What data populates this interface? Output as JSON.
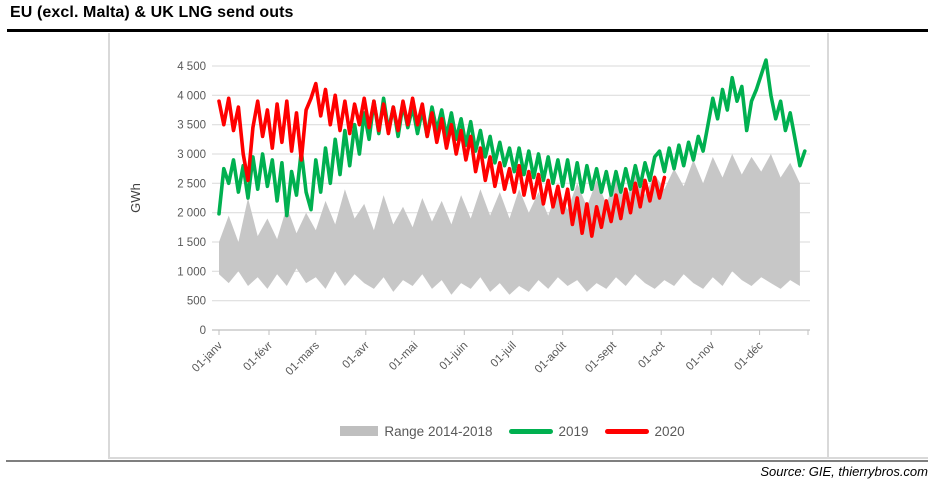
{
  "page": {
    "title": "EU (excl. Malta) & UK LNG send outs",
    "source": "Source: GIE, thierrybros.com"
  },
  "legend": {
    "items": [
      {
        "label": "Range 2014-2018",
        "color": "#BFBFBF",
        "swatch": "box"
      },
      {
        "label": "2019",
        "color": "#00B050",
        "swatch": "line"
      },
      {
        "label": "2020",
        "color": "#FF0000",
        "swatch": "line"
      }
    ]
  },
  "chart_data": {
    "type": "line",
    "title": "EU (excl. Malta) & UK LNG send outs",
    "ylabel": "GWh",
    "xlabel": "",
    "ylim": [
      0,
      4500
    ],
    "grid": true,
    "legend_position": "bottom",
    "days_in_year": 366,
    "ytick_values": [
      0,
      500,
      1000,
      1500,
      2000,
      2500,
      3000,
      3500,
      4000,
      4500
    ],
    "ytick_labels": [
      "0",
      "500",
      "1 000",
      "1 500",
      "2 000",
      "2 500",
      "3 000",
      "3 500",
      "4 000",
      "4 500"
    ],
    "xtick_days": [
      1,
      32,
      61,
      92,
      122,
      153,
      183,
      214,
      245,
      275,
      306,
      336
    ],
    "xtick_labels": [
      "01-janv",
      "01-févr",
      "01-mars",
      "01-avr",
      "01-mai",
      "01-juin",
      "01-juil",
      "01-août",
      "01-sept",
      "01-oct",
      "01-nov",
      "01-déc"
    ],
    "series": [
      {
        "name": "Range 2014-2018",
        "type": "band",
        "color": "#C7C7C7",
        "days": {
          "start": 1,
          "step": 6
        },
        "min": [
          950,
          800,
          1000,
          750,
          900,
          700,
          950,
          750,
          1050,
          800,
          900,
          700,
          1000,
          750,
          950,
          800,
          700,
          900,
          650,
          850,
          750,
          950,
          700,
          850,
          600,
          800,
          700,
          900,
          650,
          800,
          600,
          750,
          650,
          850,
          700,
          900,
          750,
          850,
          650,
          800,
          700,
          900,
          750,
          950,
          800,
          700,
          850,
          750,
          950,
          800,
          700,
          900,
          750,
          1000,
          850,
          750,
          900,
          800,
          700,
          850,
          750
        ],
        "max": [
          1500,
          1950,
          1500,
          2250,
          1600,
          1900,
          1550,
          2100,
          1650,
          2000,
          1700,
          2200,
          1800,
          2400,
          1900,
          2150,
          1700,
          2300,
          1800,
          2100,
          1750,
          2250,
          1850,
          2200,
          1800,
          2300,
          1900,
          2400,
          1950,
          2350,
          1900,
          2400,
          2000,
          2350,
          1950,
          2400,
          2050,
          2500,
          2100,
          2550,
          2150,
          2600,
          2200,
          2700,
          2300,
          2650,
          2400,
          2750,
          2450,
          2900,
          2500,
          2950,
          2600,
          3000,
          2650,
          2950,
          2700,
          3000,
          2600,
          2850,
          2500
        ]
      },
      {
        "name": "2019",
        "type": "line",
        "color": "#00B050",
        "days": {
          "start": 1,
          "step": 3
        },
        "values": [
          1980,
          2750,
          2500,
          2900,
          2350,
          2800,
          2250,
          2950,
          2400,
          3000,
          2450,
          2900,
          2200,
          2850,
          1950,
          2700,
          2300,
          3050,
          2350,
          2050,
          2900,
          2350,
          3100,
          2500,
          3250,
          2650,
          3400,
          2800,
          3500,
          3000,
          3700,
          3250,
          3900,
          3350,
          3950,
          3400,
          3800,
          3300,
          3850,
          3450,
          3800,
          3350,
          3750,
          3300,
          3800,
          3400,
          3750,
          3300,
          3700,
          3250,
          3600,
          3150,
          3550,
          3050,
          3400,
          2950,
          3300,
          2850,
          3200,
          2800,
          3100,
          2700,
          3100,
          2650,
          3050,
          2600,
          3000,
          2550,
          2950,
          2500,
          2900,
          2450,
          2900,
          2400,
          2850,
          2350,
          2800,
          2400,
          2750,
          2350,
          2700,
          2300,
          2700,
          2350,
          2750,
          2400,
          2800,
          2450,
          2850,
          2550,
          2950,
          3050,
          2700,
          3100,
          2750,
          3150,
          2800,
          3200,
          2900,
          3300,
          3050,
          3500,
          3950,
          3600,
          4100,
          3750,
          4300,
          3900,
          4150,
          3400,
          3900,
          4100,
          4350,
          4600,
          4000,
          3600,
          3900,
          3400,
          3700,
          3250,
          2800,
          3050
        ]
      },
      {
        "name": "2020",
        "type": "line",
        "color": "#FF0000",
        "days": {
          "start": 1,
          "step": 3
        },
        "values": [
          3900,
          3500,
          3950,
          3400,
          3800,
          3000,
          2550,
          3450,
          3900,
          3300,
          3750,
          3100,
          3850,
          3200,
          3900,
          3050,
          3700,
          2900,
          3750,
          3950,
          4200,
          3650,
          4100,
          3500,
          4000,
          3400,
          3900,
          3350,
          3850,
          3500,
          3950,
          3450,
          3900,
          3400,
          3850,
          3350,
          3800,
          3400,
          3900,
          3500,
          3950,
          3500,
          3850,
          3300,
          3700,
          3200,
          3600,
          3100,
          3500,
          3000,
          3400,
          2900,
          3300,
          2700,
          3100,
          2550,
          2950,
          2450,
          2850,
          2400,
          2750,
          2350,
          2800,
          2300,
          2700,
          2250,
          2650,
          2150,
          2550,
          2100,
          2450,
          2000,
          2400,
          1800,
          2250,
          1650,
          2150,
          1600,
          2100,
          1750,
          2200,
          1850,
          2300,
          1900,
          2400,
          2000,
          2500,
          2100,
          2550,
          2200,
          2600,
          2250,
          2600
        ]
      }
    ]
  }
}
